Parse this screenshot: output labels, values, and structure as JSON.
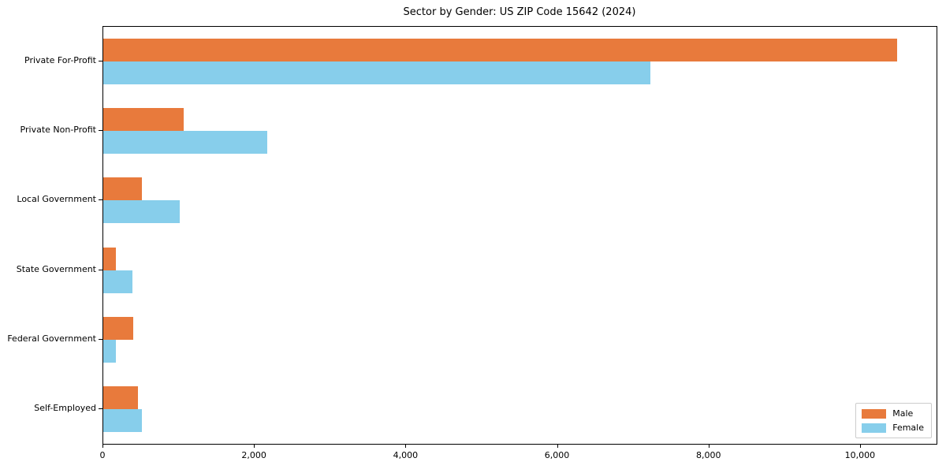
{
  "title": "Sector by Gender: US ZIP Code 15642 (2024)",
  "colors": {
    "male": "#e87a3c",
    "female": "#87ceeb",
    "axis": "#000000",
    "legend_border": "#cccccc",
    "background": "#ffffff"
  },
  "legend": {
    "position": "lower right",
    "items": [
      {
        "label": "Male",
        "color": "#e87a3c"
      },
      {
        "label": "Female",
        "color": "#87ceeb"
      }
    ]
  },
  "chart_data": {
    "type": "bar",
    "orientation": "horizontal",
    "title": "Sector by Gender: US ZIP Code 15642 (2024)",
    "categories": [
      "Private For-Profit",
      "Private Non-Profit",
      "Local Government",
      "State Government",
      "Federal Government",
      "Self-Employed"
    ],
    "series": [
      {
        "name": "Male",
        "color": "#e87a3c",
        "values": [
          10480,
          1060,
          510,
          170,
          395,
          460
        ]
      },
      {
        "name": "Female",
        "color": "#87ceeb",
        "values": [
          7220,
          2160,
          1010,
          385,
          170,
          510
        ]
      }
    ],
    "xlabel": "",
    "ylabel": "",
    "xlim": [
      0,
      11000
    ],
    "xticks": [
      0,
      2000,
      4000,
      6000,
      8000,
      10000
    ],
    "xtick_labels": [
      "0",
      "2,000",
      "4,000",
      "6,000",
      "8,000",
      "10,000"
    ],
    "grid": false,
    "legend_position": "lower right"
  }
}
